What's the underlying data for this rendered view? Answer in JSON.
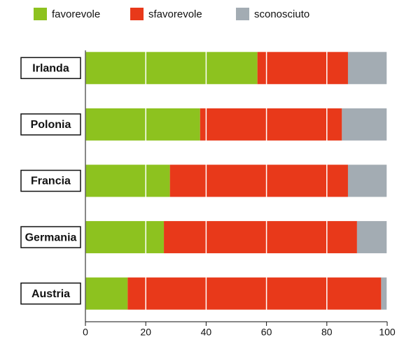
{
  "chart_data": {
    "type": "bar",
    "orientation": "horizontal",
    "stacked": true,
    "categories": [
      "Irlanda",
      "Polonia",
      "Francia",
      "Germania",
      "Austria"
    ],
    "series": [
      {
        "name": "favorevole",
        "color": "#8dc21f",
        "values": [
          57,
          38,
          28,
          26,
          14
        ]
      },
      {
        "name": "sfavorevole",
        "color": "#e8391a",
        "values": [
          30,
          47,
          59,
          64,
          84
        ]
      },
      {
        "name": "sconosciuto",
        "color": "#a3acb3",
        "values": [
          13,
          15,
          13,
          10,
          2
        ]
      }
    ],
    "xlim": [
      0,
      100
    ],
    "xticks": [
      0,
      20,
      40,
      60,
      80,
      100
    ],
    "grid": true,
    "legend": "top"
  }
}
